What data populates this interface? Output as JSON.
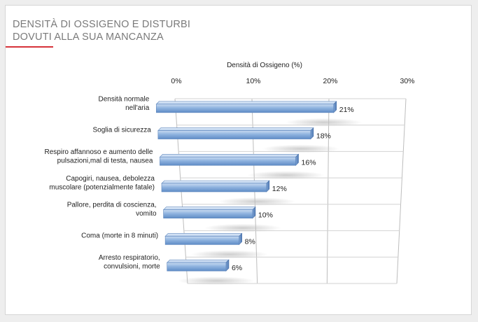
{
  "header": {
    "title_line1": "DENSITÀ DI OSSIGENO E DISTURBI",
    "title_line2": "DOVUTI ALLA SUA MANCANZA",
    "accent_color": "#d6323a"
  },
  "chart_data": {
    "type": "bar",
    "orientation": "horizontal",
    "style": "3d",
    "axis_title": "Densità di Ossigeno (%)",
    "xlim": [
      0,
      30
    ],
    "ticks": [
      "0%",
      "10%",
      "20%",
      "30%"
    ],
    "grid": true,
    "categories": [
      [
        "Densità normale",
        "nell'aria"
      ],
      [
        "Soglia di sicurezza"
      ],
      [
        "Respiro affannoso e aumento delle",
        "pulsazioni,mal di testa, nausea"
      ],
      [
        "Capogiri, nausea, debolezza",
        "muscolare (potenzialmente fatale)"
      ],
      [
        "Pallore, perdita di coscienza,",
        "vomito"
      ],
      [
        "Coma (morte in 8 minuti)"
      ],
      [
        "Arresto respiratorio,",
        "convulsioni, morte"
      ]
    ],
    "values": [
      21,
      18,
      16,
      12,
      10,
      8,
      6
    ],
    "data_labels": [
      "21%",
      "18%",
      "16%",
      "12%",
      "10%",
      "8%",
      "6%"
    ],
    "bar_color": "#8fb3df"
  }
}
